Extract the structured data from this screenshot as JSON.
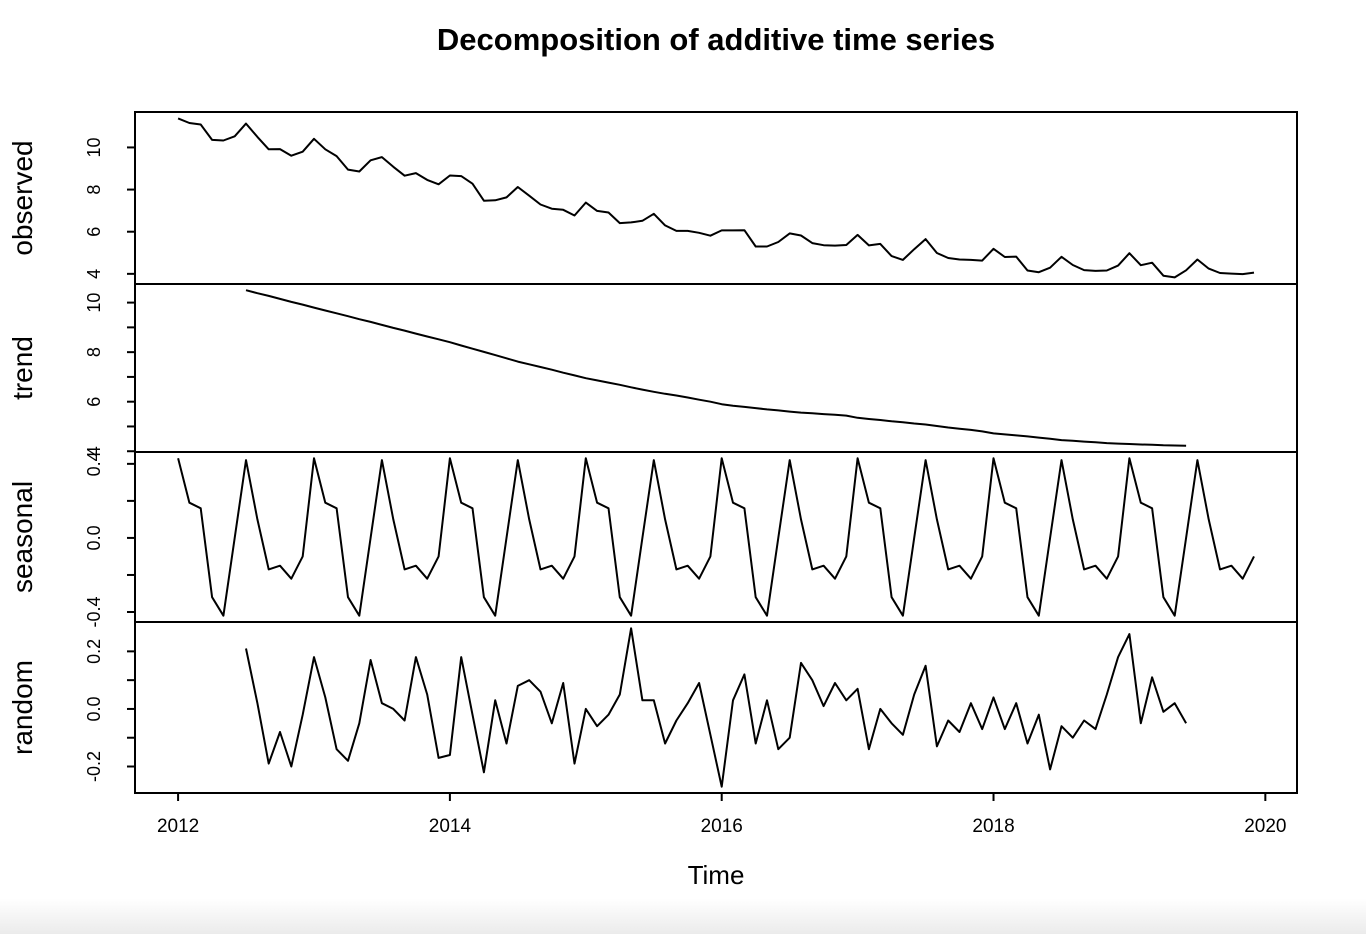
{
  "colors": {
    "foreground": "#000000",
    "background": "#ffffff"
  },
  "chart_data": {
    "type": "line",
    "title": "Decomposition of additive time series",
    "xlabel": "Time",
    "grid": false,
    "legend": "none",
    "xlim": [
      2011.683,
      2020.233
    ],
    "x_ticks": [
      2012,
      2014,
      2016,
      2018,
      2020
    ],
    "x_tick_labels": [
      "2012",
      "2014",
      "2016",
      "2018",
      "2020"
    ],
    "frequency": 12,
    "panels": [
      {
        "name": "observed",
        "ylabel": "observed",
        "start": 2012.0,
        "ylim": [
          3.518,
          11.682
        ],
        "yticks": [
          4,
          6,
          8,
          10
        ],
        "ytick_labels": [
          "4",
          "6",
          "8",
          "10"
        ],
        "values": [
          11.38,
          11.16,
          11.09,
          10.36,
          10.33,
          10.53,
          11.13,
          10.5,
          9.91,
          9.92,
          9.61,
          9.8,
          10.41,
          9.91,
          9.59,
          8.95,
          8.86,
          9.39,
          9.54,
          9.08,
          8.66,
          8.78,
          8.46,
          8.25,
          8.67,
          8.64,
          8.28,
          7.47,
          7.49,
          7.63,
          8.12,
          7.71,
          7.29,
          7.09,
          7.04,
          6.77,
          7.38,
          6.99,
          6.91,
          6.41,
          6.44,
          6.52,
          6.85,
          6.3,
          6.04,
          6.04,
          5.95,
          5.81,
          6.06,
          6.06,
          6.07,
          5.3,
          5.3,
          5.51,
          5.92,
          5.82,
          5.46,
          5.36,
          5.34,
          5.37,
          5.85,
          5.35,
          5.42,
          4.84,
          4.66,
          5.17,
          5.65,
          4.99,
          4.75,
          4.68,
          4.66,
          4.63,
          5.19,
          4.8,
          4.82,
          4.16,
          4.08,
          4.29,
          4.81,
          4.42,
          4.18,
          4.14,
          4.16,
          4.39,
          4.98,
          4.41,
          4.53,
          3.91,
          3.83,
          4.17,
          4.68,
          4.25,
          4.04,
          4.01,
          3.99,
          4.06
        ]
      },
      {
        "name": "trend",
        "ylabel": "trend",
        "start": 2012.5,
        "ylim": [
          3.969,
          10.751
        ],
        "yticks": [
          4,
          5,
          6,
          7,
          8,
          9,
          10
        ],
        "ytick_labels": [
          "4",
          "",
          "6",
          "",
          "8",
          "",
          "10"
        ],
        "values": [
          10.5,
          10.38,
          10.27,
          10.15,
          10.03,
          9.92,
          9.8,
          9.68,
          9.57,
          9.45,
          9.33,
          9.22,
          9.1,
          8.98,
          8.87,
          8.75,
          8.63,
          8.52,
          8.4,
          8.27,
          8.14,
          8.01,
          7.88,
          7.75,
          7.62,
          7.51,
          7.4,
          7.29,
          7.17,
          7.06,
          6.95,
          6.86,
          6.77,
          6.68,
          6.58,
          6.49,
          6.4,
          6.32,
          6.25,
          6.17,
          6.08,
          6.0,
          5.9,
          5.84,
          5.79,
          5.74,
          5.69,
          5.65,
          5.6,
          5.56,
          5.53,
          5.5,
          5.47,
          5.44,
          5.35,
          5.3,
          5.26,
          5.21,
          5.17,
          5.12,
          5.08,
          5.02,
          4.96,
          4.91,
          4.86,
          4.8,
          4.72,
          4.68,
          4.64,
          4.6,
          4.55,
          4.5,
          4.45,
          4.42,
          4.39,
          4.36,
          4.33,
          4.31,
          4.29,
          4.27,
          4.26,
          4.24,
          4.23,
          4.22
        ]
      },
      {
        "name": "seasonal",
        "ylabel": "seasonal",
        "start": 2012.0,
        "ylim": [
          -0.454,
          0.464
        ],
        "yticks": [
          -0.4,
          -0.2,
          0.0,
          0.2,
          0.4
        ],
        "ytick_labels": [
          "-0.4",
          "",
          "0.0",
          "",
          "0.4"
        ],
        "values": [
          0.43,
          0.19,
          0.16,
          -0.32,
          -0.42,
          0.0,
          0.42,
          0.1,
          -0.17,
          -0.15,
          -0.22,
          -0.1,
          0.43,
          0.19,
          0.16,
          -0.32,
          -0.42,
          0.0,
          0.42,
          0.1,
          -0.17,
          -0.15,
          -0.22,
          -0.1,
          0.43,
          0.19,
          0.16,
          -0.32,
          -0.42,
          0.0,
          0.42,
          0.1,
          -0.17,
          -0.15,
          -0.22,
          -0.1,
          0.43,
          0.19,
          0.16,
          -0.32,
          -0.42,
          0.0,
          0.42,
          0.1,
          -0.17,
          -0.15,
          -0.22,
          -0.1,
          0.43,
          0.19,
          0.16,
          -0.32,
          -0.42,
          0.0,
          0.42,
          0.1,
          -0.17,
          -0.15,
          -0.22,
          -0.1,
          0.43,
          0.19,
          0.16,
          -0.32,
          -0.42,
          0.0,
          0.42,
          0.1,
          -0.17,
          -0.15,
          -0.22,
          -0.1,
          0.43,
          0.19,
          0.16,
          -0.32,
          -0.42,
          0.0,
          0.42,
          0.1,
          -0.17,
          -0.15,
          -0.22,
          -0.1,
          0.43,
          0.19,
          0.16,
          -0.32,
          -0.42,
          0.0,
          0.42,
          0.1,
          -0.17,
          -0.15,
          -0.22,
          -0.1
        ]
      },
      {
        "name": "random",
        "ylabel": "random",
        "start": 2012.5,
        "ylim": [
          -0.292,
          0.302
        ],
        "yticks": [
          -0.2,
          -0.1,
          0.0,
          0.1,
          0.2
        ],
        "ytick_labels": [
          "-0.2",
          "",
          "0.0",
          "",
          "0.2"
        ],
        "values": [
          0.21,
          0.02,
          -0.19,
          -0.08,
          -0.2,
          -0.02,
          0.18,
          0.04,
          -0.14,
          -0.18,
          -0.05,
          0.17,
          0.02,
          0.0,
          -0.04,
          0.18,
          0.05,
          -0.17,
          -0.16,
          0.18,
          -0.02,
          -0.22,
          0.03,
          -0.12,
          0.08,
          0.1,
          0.06,
          -0.05,
          0.09,
          -0.19,
          0.0,
          -0.06,
          -0.02,
          0.05,
          0.28,
          0.03,
          0.03,
          -0.12,
          -0.04,
          0.02,
          0.09,
          -0.09,
          -0.27,
          0.03,
          0.12,
          -0.12,
          0.03,
          -0.14,
          -0.1,
          0.16,
          0.1,
          0.01,
          0.09,
          0.03,
          0.07,
          -0.14,
          0.0,
          -0.05,
          -0.09,
          0.05,
          0.15,
          -0.13,
          -0.04,
          -0.08,
          0.02,
          -0.07,
          0.04,
          -0.07,
          0.02,
          -0.12,
          -0.02,
          -0.21,
          -0.06,
          -0.1,
          -0.04,
          -0.07,
          0.05,
          0.18,
          0.26,
          -0.05,
          0.11,
          -0.01,
          0.02,
          -0.05
        ]
      }
    ]
  }
}
